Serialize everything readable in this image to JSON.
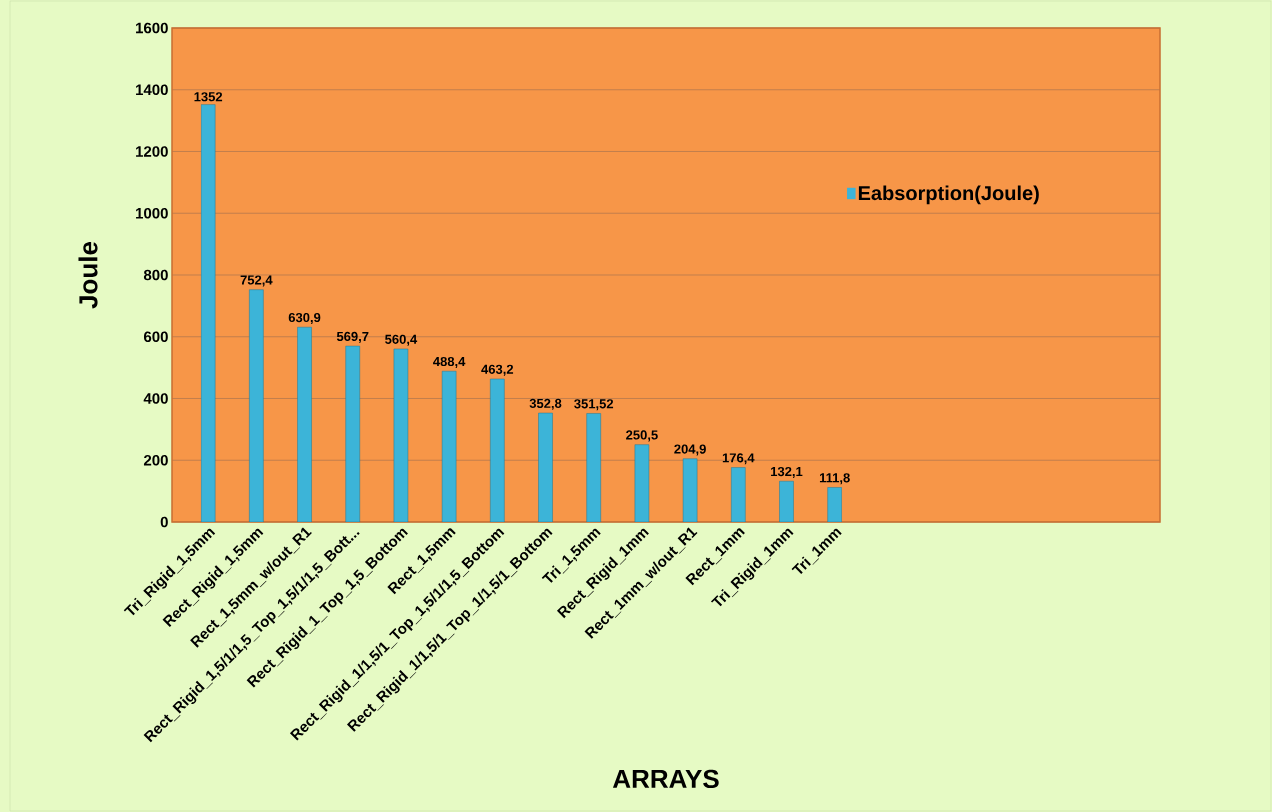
{
  "chart_data": {
    "type": "bar",
    "xlabel": "ARRAYS",
    "ylabel": "Joule",
    "categories": [
      "Tri_Rigid_1,5mm",
      "Rect_Rigid_1,5mm",
      "Rect_1,5mm_w/out_R1",
      "Rect_Rigid_1,5/1/1,5_Top_1,5/1/1,5_Bott...",
      "Rect_Rigid_1_Top_1,5_Bottom",
      "Rect_1,5mm",
      "Rect_Rigid_1/1,5/1_Top_1,5/1/1,5_Bottom",
      "Rect_Rigid_1/1,5/1_Top_1/1,5/1_Bottom",
      "Tri_1,5mm",
      "Rect_Rigid_1mm",
      "Rect_1mm_w/out_R1",
      "Rect_1mm",
      "Tri_Rigid_1mm",
      "Tri_1mm"
    ],
    "series": [
      {
        "name": "Eabsorption(Joule)",
        "color": "#3cb4d8",
        "values": [
          1352,
          752.4,
          630.9,
          569.7,
          560.4,
          488.4,
          463.2,
          352.8,
          351.52,
          250.5,
          204.9,
          176.4,
          132.1,
          111.8
        ],
        "value_labels": [
          "1352",
          "752,4",
          "630,9",
          "569,7",
          "560,4",
          "488,4",
          "463,2",
          "352,8",
          "351,52",
          "250,5",
          "204,9",
          "176,4",
          "132,1",
          "111,8"
        ]
      }
    ],
    "ylim": [
      0,
      1600
    ],
    "yticks": [
      0,
      200,
      400,
      600,
      800,
      1000,
      1200,
      1400,
      1600
    ],
    "grid": "y",
    "legend": "right"
  }
}
